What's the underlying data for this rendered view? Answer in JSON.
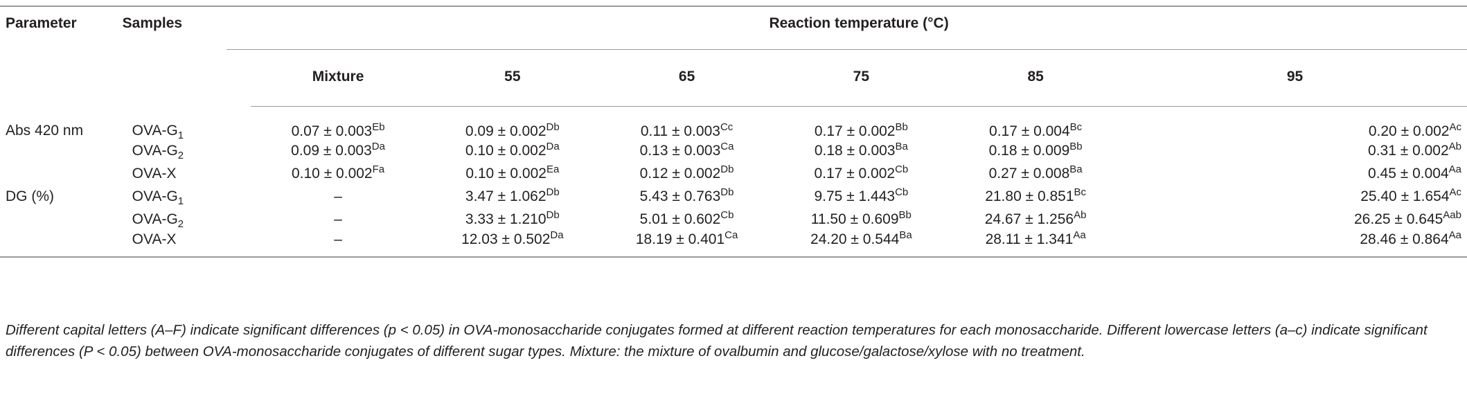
{
  "table": {
    "header": {
      "parameter": "Parameter",
      "samples": "Samples",
      "group_title": "Reaction temperature (°C)",
      "mixture": "Mixture",
      "temps": [
        "55",
        "65",
        "75",
        "85",
        "95"
      ]
    },
    "rows": [
      {
        "param": "Abs 420 nm",
        "sample": "OVA-G",
        "sub": "1",
        "cells": [
          {
            "v": "0.07 ± 0.003",
            "s": "Eb"
          },
          {
            "v": "0.09 ± 0.002",
            "s": "Db"
          },
          {
            "v": "0.11 ± 0.003",
            "s": "Cc"
          },
          {
            "v": "0.17 ± 0.002",
            "s": "Bb"
          },
          {
            "v": "0.17 ± 0.004",
            "s": "Bc"
          },
          {
            "v": "0.20 ± 0.002",
            "s": "Ac"
          }
        ]
      },
      {
        "param": "",
        "sample": "OVA-G",
        "sub": "2",
        "cells": [
          {
            "v": "0.09 ± 0.003",
            "s": "Da"
          },
          {
            "v": "0.10 ± 0.002",
            "s": "Da"
          },
          {
            "v": "0.13 ± 0.003",
            "s": "Ca"
          },
          {
            "v": "0.18 ± 0.003",
            "s": "Ba"
          },
          {
            "v": "0.18 ± 0.009",
            "s": "Bb"
          },
          {
            "v": "0.31 ± 0.002",
            "s": "Ab"
          }
        ]
      },
      {
        "param": "",
        "sample": "OVA-X",
        "sub": "",
        "cells": [
          {
            "v": "0.10 ± 0.002",
            "s": "Fa"
          },
          {
            "v": "0.10 ± 0.002",
            "s": "Ea"
          },
          {
            "v": "0.12 ± 0.002",
            "s": "Db"
          },
          {
            "v": "0.17 ± 0.002",
            "s": "Cb"
          },
          {
            "v": "0.27 ± 0.008",
            "s": "Ba"
          },
          {
            "v": "0.45 ± 0.004",
            "s": "Aa"
          }
        ]
      },
      {
        "param": "DG (%)",
        "sample": "OVA-G",
        "sub": "1",
        "cells": [
          {
            "v": "–",
            "s": ""
          },
          {
            "v": "3.47 ± 1.062",
            "s": "Db"
          },
          {
            "v": "5.43 ± 0.763",
            "s": "Db"
          },
          {
            "v": "9.75 ± 1.443",
            "s": "Cb"
          },
          {
            "v": "21.80 ± 0.851",
            "s": "Bc"
          },
          {
            "v": "25.40 ± 1.654",
            "s": "Ac"
          }
        ]
      },
      {
        "param": "",
        "sample": "OVA-G",
        "sub": "2",
        "cells": [
          {
            "v": "–",
            "s": ""
          },
          {
            "v": "3.33 ± 1.210",
            "s": "Db"
          },
          {
            "v": "5.01 ± 0.602",
            "s": "Cb"
          },
          {
            "v": "11.50 ± 0.609",
            "s": "Bb"
          },
          {
            "v": "24.67 ± 1.256",
            "s": "Ab"
          },
          {
            "v": "26.25 ± 0.645",
            "s": "Aab"
          }
        ]
      },
      {
        "param": "",
        "sample": "OVA-X",
        "sub": "",
        "cells": [
          {
            "v": "–",
            "s": ""
          },
          {
            "v": "12.03 ± 0.502",
            "s": "Da"
          },
          {
            "v": "18.19 ± 0.401",
            "s": "Ca"
          },
          {
            "v": "24.20 ± 0.544",
            "s": "Ba"
          },
          {
            "v": "28.11 ± 1.341",
            "s": "Aa"
          },
          {
            "v": "28.46 ± 0.864",
            "s": "Aa"
          }
        ]
      }
    ]
  },
  "footnote": "Different capital letters (A–F) indicate significant differences (p < 0.05) in OVA-monosaccharide conjugates formed at different reaction temperatures for each monosaccharide. Different lowercase letters (a–c) indicate significant differences (P < 0.05) between OVA-monosaccharide conjugates of different sugar types. Mixture: the mixture of ovalbumin and glucose/galactose/xylose with no treatment."
}
